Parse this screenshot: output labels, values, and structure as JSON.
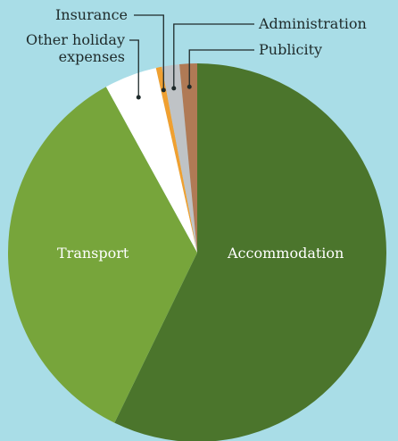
{
  "chart_data": {
    "type": "pie",
    "categories": [
      "Accommodation",
      "Transport",
      "Other holiday expenses",
      "Insurance",
      "Administration",
      "Publicity"
    ],
    "values": [
      57.2,
      34.8,
      4.5,
      0.5,
      1.5,
      1.5
    ],
    "colors": [
      "#4b752c",
      "#77a53b",
      "#ffffff",
      "#f0a030",
      "#bfc3c6",
      "#b07a55"
    ]
  }
}
